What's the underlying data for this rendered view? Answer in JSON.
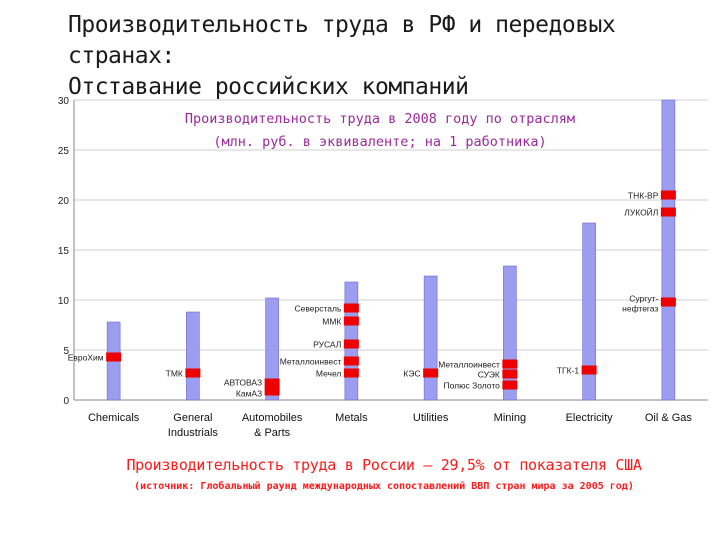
{
  "slide_title_line1": "Производительность труда в РФ и передовых странах:",
  "slide_title_line2": "Отставание российских компаний",
  "chart_data": {
    "type": "bar",
    "title": "Производительность труда в 2008 году по отраслям",
    "subtitle": "(млн. руб. в эквиваленте; на 1 работника)",
    "ylim": [
      0,
      30
    ],
    "yticks": [
      0,
      5,
      10,
      15,
      20,
      25,
      30
    ],
    "grid": true,
    "bar_color": "#9c9cf0",
    "marker_color": "#ee0000",
    "categories": [
      "Chemicals",
      "General Industrials",
      "Automobiles & Parts",
      "Metals",
      "Utilities",
      "Mining",
      "Electricity",
      "Oil & Gas"
    ],
    "values": [
      7.8,
      8.8,
      10.2,
      11.8,
      12.4,
      13.4,
      17.7,
      30
    ],
    "companies": [
      {
        "category": "Chemicals",
        "name": "ЕвроХим",
        "value": 4.3
      },
      {
        "category": "General Industrials",
        "name": "ТМК",
        "value": 2.7
      },
      {
        "category": "Automobiles & Parts",
        "name": "АВТОВАЗ",
        "value": 1.7
      },
      {
        "category": "Automobiles & Parts",
        "name": "КамАЗ",
        "value": 0.9
      },
      {
        "category": "Metals",
        "name": "Северсталь",
        "value": 9.2
      },
      {
        "category": "Metals",
        "name": "ММК",
        "value": 7.9
      },
      {
        "category": "Metals",
        "name": "РУСАЛ",
        "value": 5.6
      },
      {
        "category": "Metals",
        "name": "Металлоинвест",
        "value": 3.9
      },
      {
        "category": "Metals",
        "name": "Мечел",
        "value": 2.7
      },
      {
        "category": "Utilities",
        "name": "КЭС",
        "value": 2.7
      },
      {
        "category": "Mining",
        "name": "Металлоинвест",
        "value": 3.6
      },
      {
        "category": "Mining",
        "name": "СУЭК",
        "value": 2.6
      },
      {
        "category": "Mining",
        "name": "Полюс Золото",
        "value": 1.5
      },
      {
        "category": "Electricity",
        "name": "ТГК-1",
        "value": 3.0
      },
      {
        "category": "Oil & Gas",
        "name": "ТНК-ВР",
        "value": 20.5
      },
      {
        "category": "Oil & Gas",
        "name": "ЛУКОЙЛ",
        "value": 18.8
      },
      {
        "category": "Oil & Gas",
        "name": "Сургутнефтегаз",
        "value": 9.8
      }
    ]
  },
  "footer_main": "Производительность труда в России – 29,5% от показателя США",
  "footer_source": "(источник: Глобальный раунд международных сопоставлений ВВП стран мира за 2005 год)"
}
